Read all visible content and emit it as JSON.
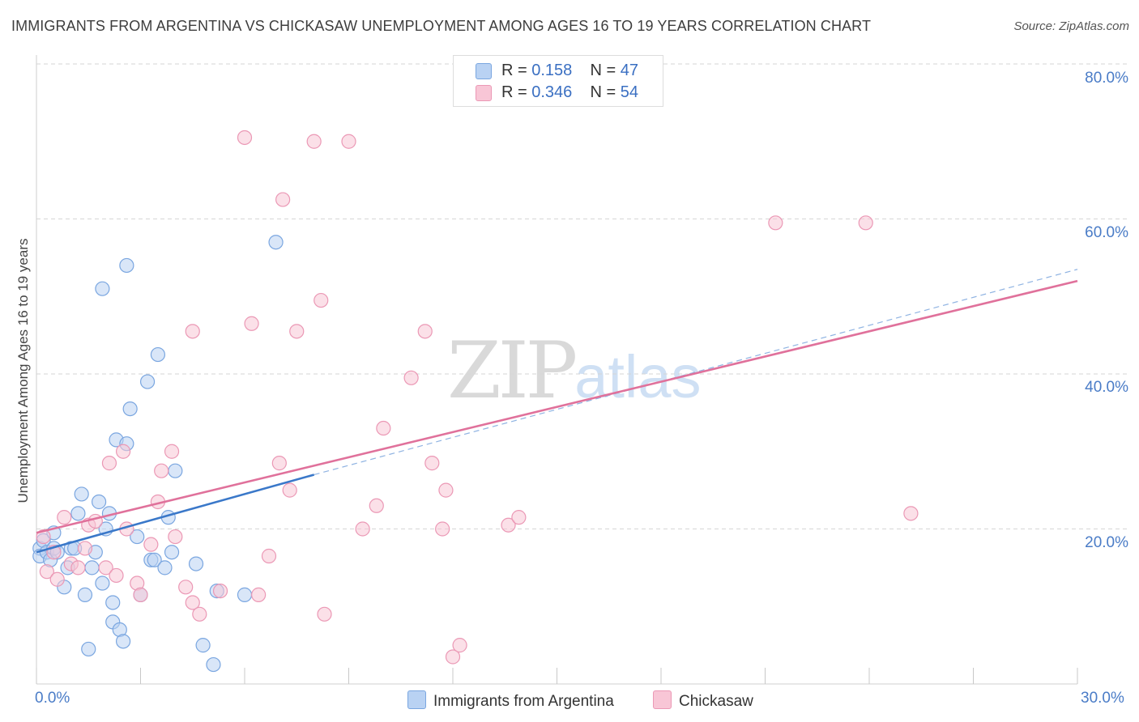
{
  "title": "IMMIGRANTS FROM ARGENTINA VS CHICKASAW UNEMPLOYMENT AMONG AGES 16 TO 19 YEARS CORRELATION CHART",
  "source": "Source: ZipAtlas.com",
  "watermark": {
    "zip": "ZIP",
    "atlas": "atlas"
  },
  "legend": {
    "argentina": {
      "r_label": "R = ",
      "r_value": "0.158",
      "n_label": "N = ",
      "n_value": "47"
    },
    "chickasaw": {
      "r_label": "R = ",
      "r_value": "0.346",
      "n_label": "N = ",
      "n_value": "54"
    }
  },
  "colors": {
    "argentina_fill": "#b9d2f3",
    "argentina_stroke": "#7aa6e0",
    "argentina_line": "#3a78c9",
    "chickasaw_fill": "#f8c6d6",
    "chickasaw_stroke": "#eb98b5",
    "chickasaw_line": "#e0719b",
    "grid": "#d6d6d6",
    "axis_label": "#4a7cc7"
  },
  "chart_data": {
    "type": "scatter",
    "title": "IMMIGRANTS FROM ARGENTINA VS CHICKASAW UNEMPLOYMENT AMONG AGES 16 TO 19 YEARS CORRELATION CHART",
    "xlabel": "",
    "ylabel": "Unemployment Among Ages 16 to 19 years",
    "xlim": [
      0,
      30
    ],
    "ylim": [
      0,
      80
    ],
    "x_tick_labels": [
      "0.0%",
      "30.0%"
    ],
    "y_tick_labels": [
      {
        "value": 80,
        "label": "80.0%"
      },
      {
        "value": 60,
        "label": "60.0%"
      },
      {
        "value": 40,
        "label": "40.0%"
      },
      {
        "value": 20,
        "label": "20.0%"
      }
    ],
    "series": [
      {
        "name": "Immigrants from Argentina",
        "points": [
          [
            0.1,
            17.5
          ],
          [
            0.1,
            16.5
          ],
          [
            0.2,
            18.5
          ],
          [
            0.3,
            17.0
          ],
          [
            0.4,
            16.0
          ],
          [
            0.5,
            19.5
          ],
          [
            0.5,
            17.5
          ],
          [
            0.6,
            17.0
          ],
          [
            0.8,
            12.5
          ],
          [
            0.9,
            15.0
          ],
          [
            1.0,
            17.5
          ],
          [
            1.1,
            17.5
          ],
          [
            1.2,
            22.0
          ],
          [
            1.3,
            24.5
          ],
          [
            1.4,
            11.5
          ],
          [
            1.5,
            4.5
          ],
          [
            1.6,
            15.0
          ],
          [
            1.7,
            17.0
          ],
          [
            1.8,
            23.5
          ],
          [
            1.9,
            13.0
          ],
          [
            1.9,
            51.0
          ],
          [
            2.0,
            20.0
          ],
          [
            2.1,
            22.0
          ],
          [
            2.2,
            8.0
          ],
          [
            2.2,
            10.5
          ],
          [
            2.3,
            31.5
          ],
          [
            2.4,
            7.0
          ],
          [
            2.5,
            5.5
          ],
          [
            2.6,
            31.0
          ],
          [
            2.6,
            54.0
          ],
          [
            2.7,
            35.5
          ],
          [
            2.9,
            19.0
          ],
          [
            3.0,
            11.5
          ],
          [
            3.2,
            39.0
          ],
          [
            3.3,
            16.0
          ],
          [
            3.4,
            16.0
          ],
          [
            3.5,
            42.5
          ],
          [
            3.7,
            15.0
          ],
          [
            3.8,
            21.5
          ],
          [
            3.9,
            17.0
          ],
          [
            4.0,
            27.5
          ],
          [
            4.6,
            15.5
          ],
          [
            4.8,
            5.0
          ],
          [
            5.1,
            2.5
          ],
          [
            5.2,
            12.0
          ],
          [
            6.0,
            11.5
          ],
          [
            6.9,
            57.0
          ]
        ]
      },
      {
        "name": "Chickasaw",
        "points": [
          [
            0.2,
            19.0
          ],
          [
            0.3,
            14.5
          ],
          [
            0.5,
            17.0
          ],
          [
            0.6,
            13.5
          ],
          [
            0.8,
            21.5
          ],
          [
            1.0,
            15.5
          ],
          [
            1.2,
            15.0
          ],
          [
            1.4,
            17.5
          ],
          [
            1.5,
            20.5
          ],
          [
            1.7,
            21.0
          ],
          [
            2.0,
            15.0
          ],
          [
            2.1,
            28.5
          ],
          [
            2.3,
            14.0
          ],
          [
            2.5,
            30.0
          ],
          [
            2.6,
            20.0
          ],
          [
            2.9,
            13.0
          ],
          [
            3.0,
            11.5
          ],
          [
            3.3,
            18.0
          ],
          [
            3.5,
            23.5
          ],
          [
            3.6,
            27.5
          ],
          [
            3.9,
            30.0
          ],
          [
            4.0,
            19.0
          ],
          [
            4.3,
            12.5
          ],
          [
            4.5,
            10.5
          ],
          [
            4.5,
            45.5
          ],
          [
            4.7,
            9.0
          ],
          [
            5.3,
            12.0
          ],
          [
            6.0,
            70.5
          ],
          [
            6.2,
            46.5
          ],
          [
            6.4,
            11.5
          ],
          [
            6.7,
            16.5
          ],
          [
            7.0,
            28.5
          ],
          [
            7.1,
            62.5
          ],
          [
            7.3,
            25.0
          ],
          [
            7.5,
            45.5
          ],
          [
            8.0,
            70.0
          ],
          [
            8.2,
            49.5
          ],
          [
            8.3,
            9.0
          ],
          [
            9.0,
            70.0
          ],
          [
            9.4,
            20.0
          ],
          [
            9.8,
            23.0
          ],
          [
            10.0,
            33.0
          ],
          [
            10.8,
            39.5
          ],
          [
            11.2,
            45.5
          ],
          [
            11.4,
            28.5
          ],
          [
            11.7,
            20.0
          ],
          [
            11.8,
            25.0
          ],
          [
            12.0,
            3.5
          ],
          [
            12.2,
            5.0
          ],
          [
            13.6,
            20.5
          ],
          [
            13.9,
            21.5
          ],
          [
            21.3,
            59.5
          ],
          [
            23.9,
            59.5
          ],
          [
            25.2,
            22.0
          ]
        ]
      }
    ],
    "trendlines": [
      {
        "series": "Immigrants from Argentina",
        "solid": [
          [
            0,
            17.0
          ],
          [
            8.0,
            27.0
          ]
        ],
        "dashed": [
          [
            8.0,
            27.0
          ],
          [
            30,
            53.5
          ]
        ]
      },
      {
        "series": "Chickasaw",
        "solid": [
          [
            0,
            19.5
          ],
          [
            30,
            52.0
          ]
        ]
      }
    ],
    "legend_bottom": [
      "Immigrants from Argentina",
      "Chickasaw"
    ]
  }
}
